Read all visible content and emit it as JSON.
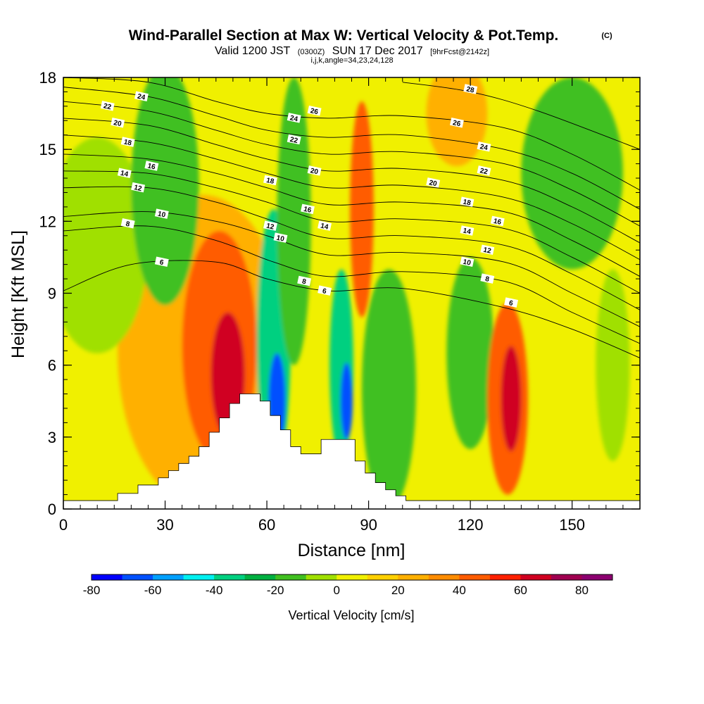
{
  "header": {
    "title": "Wind-Parallel Section at Max W: Vertical Velocity & Pot.Temp.",
    "copyright": "(C)",
    "valid_prefix": "Valid 1200 JST",
    "valid_utc": "(0300Z)",
    "valid_date": "SUN 17 Dec 2017",
    "forecast": "[9hrFcst@2142z]",
    "index_line": "i,j,k,angle=34,23,24,128"
  },
  "chart_data": {
    "type": "heatmap",
    "xlabel": "Distance [nm]",
    "ylabel": "Height [Kft MSL]",
    "xlim": [
      0,
      170
    ],
    "ylim": [
      0,
      18
    ],
    "xticks": [
      0,
      30,
      60,
      90,
      120,
      150
    ],
    "xtick_labels": [
      "0",
      "30",
      "60",
      "90",
      "120",
      "150"
    ],
    "yticks": [
      0,
      3,
      6,
      9,
      12,
      15,
      18
    ],
    "ytick_labels": [
      "0",
      "3",
      "6",
      "9",
      "12",
      "15",
      "18"
    ],
    "colorbar": {
      "title": "Vertical Velocity [cm/s]",
      "min": -80,
      "max": 90,
      "step": 10,
      "tick_values": [
        -80,
        -60,
        -40,
        -20,
        0,
        20,
        40,
        60,
        80
      ],
      "tick_labels": [
        "-80",
        "-60",
        "-40",
        "-20",
        "0",
        "20",
        "40",
        "60",
        "80"
      ],
      "colors": [
        "#0000ff",
        "#0050ff",
        "#00a0ff",
        "#00f0f0",
        "#00d080",
        "#00b040",
        "#40c020",
        "#a0e000",
        "#f0f000",
        "#ffd000",
        "#ffb000",
        "#ff8c00",
        "#ff5c00",
        "#ff2000",
        "#d00020",
        "#a00050",
        "#8c0070"
      ]
    },
    "terrain_kft": [
      [
        0,
        0.35
      ],
      [
        16,
        0.35
      ],
      [
        16,
        0.65
      ],
      [
        22,
        0.65
      ],
      [
        22,
        1.0
      ],
      [
        28,
        1.0
      ],
      [
        28,
        1.3
      ],
      [
        31,
        1.3
      ],
      [
        31,
        1.6
      ],
      [
        34,
        1.6
      ],
      [
        34,
        1.9
      ],
      [
        37,
        1.9
      ],
      [
        37,
        2.2
      ],
      [
        40,
        2.2
      ],
      [
        40,
        2.6
      ],
      [
        43,
        2.6
      ],
      [
        43,
        3.2
      ],
      [
        46,
        3.2
      ],
      [
        46,
        3.8
      ],
      [
        49,
        3.8
      ],
      [
        49,
        4.4
      ],
      [
        52,
        4.4
      ],
      [
        52,
        4.8
      ],
      [
        58,
        4.8
      ],
      [
        58,
        4.5
      ],
      [
        61,
        4.5
      ],
      [
        61,
        3.9
      ],
      [
        64,
        3.9
      ],
      [
        64,
        3.3
      ],
      [
        67,
        3.3
      ],
      [
        67,
        2.6
      ],
      [
        70,
        2.6
      ],
      [
        70,
        2.3
      ],
      [
        76,
        2.3
      ],
      [
        76,
        2.9
      ],
      [
        86,
        2.9
      ],
      [
        86,
        2.0
      ],
      [
        89,
        2.0
      ],
      [
        89,
        1.5
      ],
      [
        92,
        1.5
      ],
      [
        92,
        1.1
      ],
      [
        95,
        1.1
      ],
      [
        95,
        0.8
      ],
      [
        98,
        0.8
      ],
      [
        98,
        0.55
      ],
      [
        101,
        0.55
      ],
      [
        101,
        0.35
      ],
      [
        170,
        0.35
      ]
    ],
    "velocity_cells": [
      {
        "x": 41,
        "y": 6.6,
        "rx": 25,
        "ry": 6.5,
        "w": 20
      },
      {
        "x": 46,
        "y": 6.8,
        "rx": 11,
        "ry": 4.8,
        "w": 40
      },
      {
        "x": 48.5,
        "y": 5.6,
        "rx": 5,
        "ry": 2.6,
        "w": 60
      },
      {
        "x": 10,
        "y": 11,
        "rx": 15,
        "ry": 4.5,
        "w": -5
      },
      {
        "x": 30,
        "y": 13.5,
        "rx": 10,
        "ry": 5,
        "w": -15
      },
      {
        "x": 62,
        "y": 7,
        "rx": 5,
        "ry": 5.5,
        "w": -40
      },
      {
        "x": 63,
        "y": 4.5,
        "rx": 2.5,
        "ry": 2,
        "w": -70
      },
      {
        "x": 68,
        "y": 12,
        "rx": 5,
        "ry": 6,
        "w": -20
      },
      {
        "x": 82,
        "y": 6,
        "rx": 3.5,
        "ry": 4,
        "w": -40
      },
      {
        "x": 83.5,
        "y": 4.5,
        "rx": 1.8,
        "ry": 1.6,
        "w": -70
      },
      {
        "x": 88,
        "y": 12.5,
        "rx": 3.5,
        "ry": 4.5,
        "w": 40
      },
      {
        "x": 96,
        "y": 5,
        "rx": 8,
        "ry": 5,
        "w": -20
      },
      {
        "x": 120,
        "y": 6.5,
        "rx": 7,
        "ry": 4,
        "w": -20
      },
      {
        "x": 131,
        "y": 4.6,
        "rx": 6,
        "ry": 4,
        "w": 40
      },
      {
        "x": 132,
        "y": 4.6,
        "rx": 3,
        "ry": 2.2,
        "w": 60
      },
      {
        "x": 150,
        "y": 14,
        "rx": 15,
        "ry": 4,
        "w": -20
      },
      {
        "x": 116,
        "y": 16.5,
        "rx": 9,
        "ry": 2.2,
        "w": 20
      },
      {
        "x": 162,
        "y": 6,
        "rx": 5,
        "ry": 4,
        "w": -5
      }
    ],
    "theta_contours": [
      {
        "level": "6",
        "pts": [
          [
            0,
            9.1
          ],
          [
            20,
            10.2
          ],
          [
            45,
            10.3
          ],
          [
            60,
            9.6
          ],
          [
            78,
            9.1
          ],
          [
            100,
            9.2
          ],
          [
            130,
            8.4
          ],
          [
            150,
            7.5
          ],
          [
            170,
            6.3
          ]
        ],
        "label_at": [
          [
            29,
            10.3
          ],
          [
            77,
            9.1
          ],
          [
            132,
            8.6
          ]
        ]
      },
      {
        "label_at": [
          [
            19,
            11.9
          ],
          [
            71,
            9.5
          ],
          [
            125,
            9.6
          ]
        ],
        "level": "8",
        "pts": [
          [
            0,
            11.6
          ],
          [
            25,
            11.8
          ],
          [
            45,
            11.2
          ],
          [
            62,
            10.3
          ],
          [
            78,
            9.7
          ],
          [
            100,
            9.9
          ],
          [
            130,
            9.5
          ],
          [
            150,
            8.2
          ],
          [
            170,
            6.9
          ]
        ]
      },
      {
        "level": "10",
        "pts": [
          [
            0,
            12.2
          ],
          [
            25,
            12.4
          ],
          [
            45,
            12.0
          ],
          [
            60,
            11.4
          ],
          [
            78,
            10.6
          ],
          [
            100,
            10.7
          ],
          [
            130,
            10.3
          ],
          [
            150,
            9.0
          ],
          [
            170,
            7.6
          ]
        ],
        "label_at": [
          [
            29,
            12.3
          ],
          [
            64,
            11.3
          ],
          [
            119,
            10.3
          ]
        ]
      },
      {
        "level": "12",
        "pts": [
          [
            0,
            13.4
          ],
          [
            25,
            13.4
          ],
          [
            45,
            12.8
          ],
          [
            60,
            12.1
          ],
          [
            78,
            11.3
          ],
          [
            100,
            11.4
          ],
          [
            130,
            11.0
          ],
          [
            150,
            9.8
          ],
          [
            170,
            8.3
          ]
        ],
        "label_at": [
          [
            22,
            13.4
          ],
          [
            61,
            11.8
          ],
          [
            125,
            10.8
          ]
        ]
      },
      {
        "level": "14",
        "pts": [
          [
            0,
            14.1
          ],
          [
            25,
            14.0
          ],
          [
            45,
            13.4
          ],
          [
            60,
            12.8
          ],
          [
            78,
            12.0
          ],
          [
            100,
            12.1
          ],
          [
            130,
            11.7
          ],
          [
            150,
            10.5
          ],
          [
            170,
            9.0
          ]
        ],
        "label_at": [
          [
            18,
            14.0
          ],
          [
            77,
            11.8
          ],
          [
            119,
            11.6
          ]
        ]
      },
      {
        "level": "16",
        "pts": [
          [
            0,
            14.8
          ],
          [
            25,
            14.6
          ],
          [
            45,
            14.0
          ],
          [
            60,
            13.4
          ],
          [
            78,
            12.7
          ],
          [
            100,
            12.8
          ],
          [
            130,
            12.4
          ],
          [
            150,
            11.2
          ],
          [
            170,
            9.7
          ]
        ],
        "label_at": [
          [
            26,
            14.3
          ],
          [
            72,
            12.5
          ],
          [
            128,
            12.0
          ]
        ]
      },
      {
        "level": "18",
        "pts": [
          [
            0,
            15.6
          ],
          [
            25,
            15.3
          ],
          [
            45,
            14.6
          ],
          [
            60,
            14.0
          ],
          [
            78,
            13.4
          ],
          [
            100,
            13.5
          ],
          [
            130,
            13.0
          ],
          [
            150,
            11.9
          ],
          [
            170,
            10.4
          ]
        ],
        "label_at": [
          [
            19,
            15.3
          ],
          [
            61,
            13.7
          ],
          [
            119,
            12.8
          ]
        ]
      },
      {
        "level": "20",
        "pts": [
          [
            0,
            16.3
          ],
          [
            25,
            16.0
          ],
          [
            45,
            15.2
          ],
          [
            60,
            14.6
          ],
          [
            78,
            14.1
          ],
          [
            100,
            14.2
          ],
          [
            130,
            13.7
          ],
          [
            150,
            12.6
          ],
          [
            170,
            11.1
          ]
        ],
        "label_at": [
          [
            16,
            16.1
          ],
          [
            74,
            14.1
          ],
          [
            109,
            13.6
          ]
        ]
      },
      {
        "level": "22",
        "pts": [
          [
            0,
            17.0
          ],
          [
            25,
            16.6
          ],
          [
            45,
            15.8
          ],
          [
            60,
            15.2
          ],
          [
            78,
            14.8
          ],
          [
            100,
            14.9
          ],
          [
            130,
            14.4
          ],
          [
            150,
            13.3
          ],
          [
            170,
            11.8
          ]
        ],
        "label_at": [
          [
            13,
            16.8
          ],
          [
            68,
            15.4
          ],
          [
            124,
            14.1
          ]
        ]
      },
      {
        "level": "24",
        "pts": [
          [
            0,
            17.6
          ],
          [
            25,
            17.2
          ],
          [
            45,
            16.4
          ],
          [
            60,
            15.8
          ],
          [
            78,
            15.5
          ],
          [
            100,
            15.6
          ],
          [
            130,
            15.0
          ],
          [
            150,
            14.0
          ],
          [
            170,
            12.5
          ]
        ],
        "label_at": [
          [
            23,
            17.2
          ],
          [
            68,
            16.3
          ],
          [
            124,
            15.1
          ]
        ]
      },
      {
        "level": "26",
        "pts": [
          [
            0,
            18.0
          ],
          [
            25,
            17.8
          ],
          [
            45,
            17.0
          ],
          [
            60,
            16.5
          ],
          [
            78,
            16.3
          ],
          [
            100,
            16.4
          ],
          [
            130,
            15.9
          ],
          [
            150,
            14.8
          ],
          [
            170,
            13.3
          ]
        ],
        "label_at": [
          [
            74,
            16.6
          ],
          [
            116,
            16.1
          ]
        ]
      },
      {
        "level": "28",
        "pts": [
          [
            100,
            17.8
          ],
          [
            120,
            17.4
          ],
          [
            140,
            16.6
          ],
          [
            170,
            15.0
          ]
        ],
        "label_at": [
          [
            120,
            17.5
          ]
        ]
      }
    ]
  }
}
